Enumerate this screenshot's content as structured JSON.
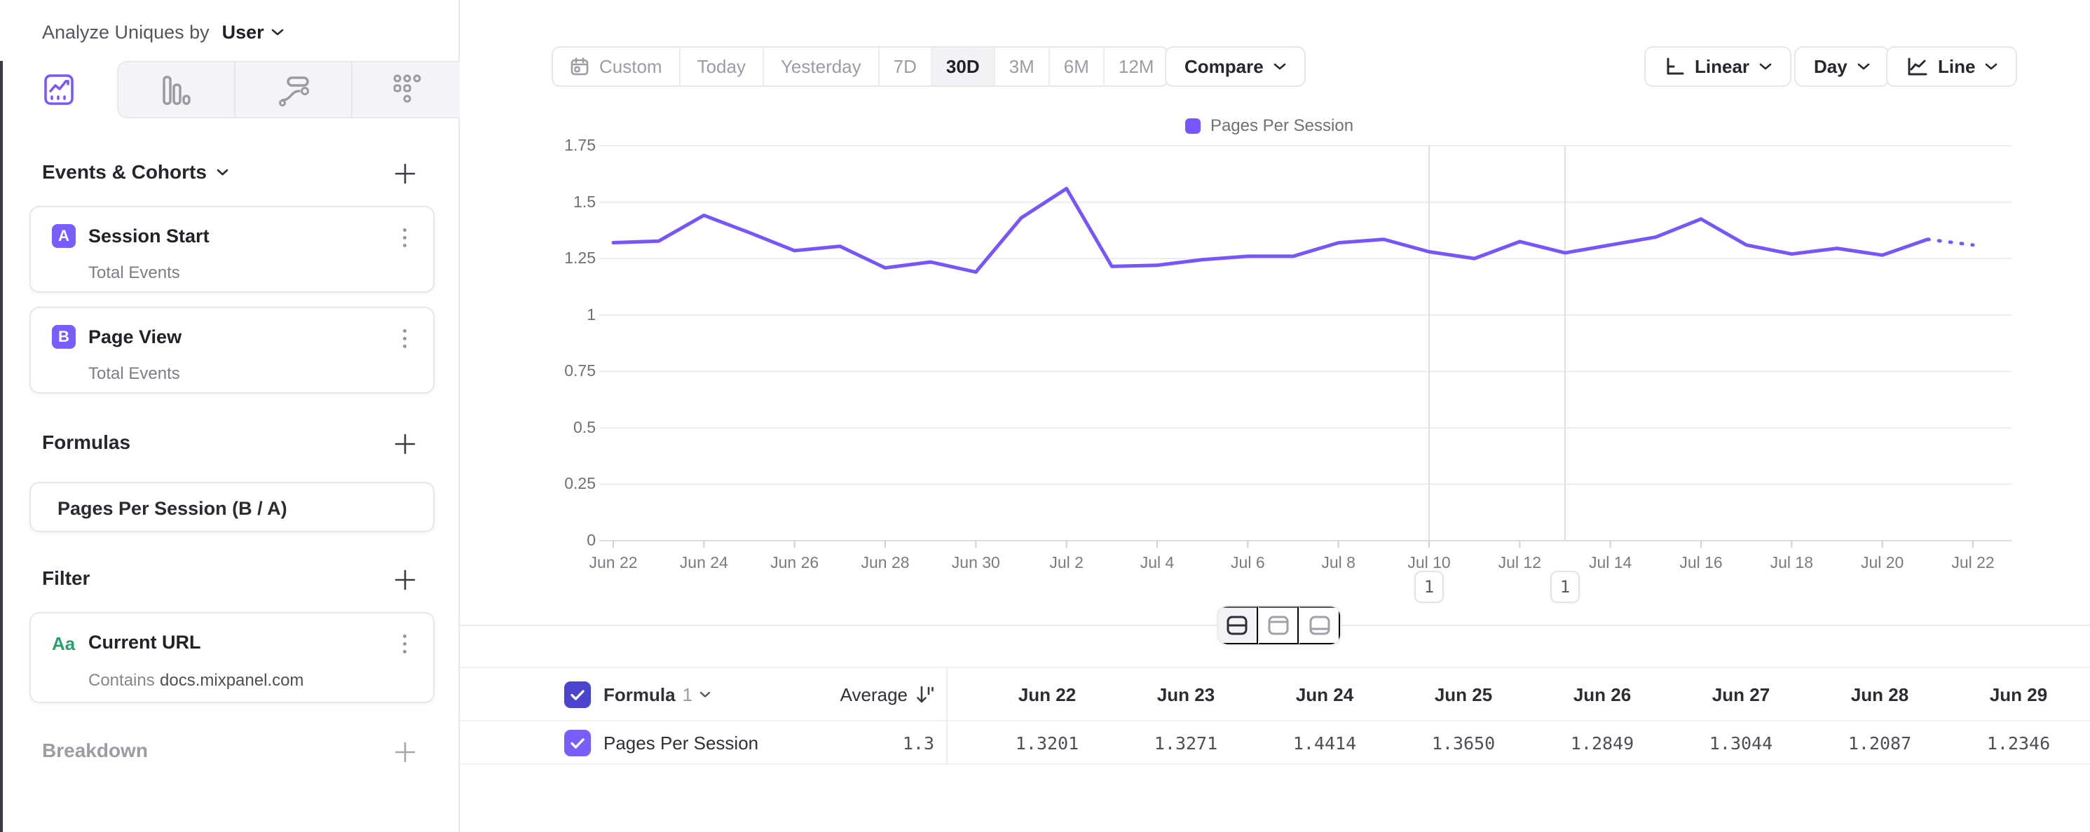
{
  "sidebar": {
    "analyze_prefix": "Analyze Uniques by",
    "analyze_value": "User",
    "tabs": [
      "insights",
      "funnels",
      "flows",
      "retention"
    ],
    "active_tab": "insights",
    "sections": {
      "events": {
        "title": "Events & Cohorts"
      },
      "formulas": {
        "title": "Formulas"
      },
      "filter": {
        "title": "Filter"
      },
      "breakdown": {
        "title": "Breakdown"
      }
    },
    "event_cards": [
      {
        "badge": "A",
        "title": "Session Start",
        "subtitle": "Total Events"
      },
      {
        "badge": "B",
        "title": "Page View",
        "subtitle": "Total Events"
      }
    ],
    "formula_cards": [
      {
        "title": "Pages Per Session (B / A)"
      }
    ],
    "filter_cards": [
      {
        "icon_label": "Aa",
        "title": "Current URL",
        "operator": "Contains",
        "value": "docs.mixpanel.com"
      }
    ]
  },
  "toolbar": {
    "date_ranges": [
      "Custom",
      "Today",
      "Yesterday",
      "7D",
      "30D",
      "3M",
      "6M",
      "12M"
    ],
    "active_range": "30D",
    "compare_label": "Compare",
    "scale_label": "Linear",
    "interval_label": "Day",
    "chart_type_label": "Line"
  },
  "chart_data": {
    "type": "line",
    "series_name": "Pages Per Session",
    "legend": [
      "Pages Per Session"
    ],
    "legend_position": "top-center",
    "grid": true,
    "ylim": [
      0,
      1.75
    ],
    "y_ticks": [
      "1.75",
      "1.5",
      "1.25",
      "1",
      "0.75",
      "0.5",
      "0.25",
      "0"
    ],
    "x_tick_labels": [
      "Jun 22",
      "Jun 24",
      "Jun 26",
      "Jun 28",
      "Jun 30",
      "Jul 2",
      "Jul 4",
      "Jul 6",
      "Jul 8",
      "Jul 10",
      "Jul 12",
      "Jul 14",
      "Jul 16",
      "Jul 18",
      "Jul 20",
      "Jul 22"
    ],
    "categories": [
      "Jun 22",
      "Jun 23",
      "Jun 24",
      "Jun 25",
      "Jun 26",
      "Jun 27",
      "Jun 28",
      "Jun 29",
      "Jun 30",
      "Jul 1",
      "Jul 2",
      "Jul 3",
      "Jul 4",
      "Jul 5",
      "Jul 6",
      "Jul 7",
      "Jul 8",
      "Jul 9",
      "Jul 10",
      "Jul 11",
      "Jul 12",
      "Jul 13",
      "Jul 14",
      "Jul 15",
      "Jul 16",
      "Jul 17",
      "Jul 18",
      "Jul 19",
      "Jul 20",
      "Jul 21",
      "Jul 22"
    ],
    "values": [
      1.3201,
      1.3271,
      1.4414,
      1.365,
      1.2849,
      1.3044,
      1.2087,
      1.2346,
      1.19,
      1.43,
      1.56,
      1.215,
      1.22,
      1.245,
      1.26,
      1.26,
      1.32,
      1.335,
      1.28,
      1.25,
      1.325,
      1.275,
      1.31,
      1.345,
      1.425,
      1.31,
      1.27,
      1.295,
      1.265,
      1.335,
      1.31
    ],
    "dotted_tail_points": 1,
    "line_color": "#7856ff",
    "annotations": [
      {
        "label": "1",
        "category": "Jul 10"
      },
      {
        "label": "1",
        "category": "Jul 13"
      }
    ]
  },
  "table": {
    "group_label": "Formula",
    "group_number": "1",
    "metric_label": "Average",
    "average": "1.3",
    "row_label": "Pages Per Session",
    "row_checked": true,
    "header_checked": true,
    "columns": [
      "Jun 22",
      "Jun 23",
      "Jun 24",
      "Jun 25",
      "Jun 26",
      "Jun 27",
      "Jun 28",
      "Jun 29"
    ],
    "values": [
      "1.3201",
      "1.3271",
      "1.4414",
      "1.3650",
      "1.2849",
      "1.3044",
      "1.2087",
      "1.2346"
    ]
  },
  "colors": {
    "accent_purple": "#7856ff",
    "badge_purple": "#7a5dfd",
    "checkbox_header": "#4c43cf",
    "checkbox_row": "#7a5dfd",
    "filter_type_green": "#2f9e6d",
    "grid_line": "#ececef",
    "annotation_line": "#dedee3"
  }
}
